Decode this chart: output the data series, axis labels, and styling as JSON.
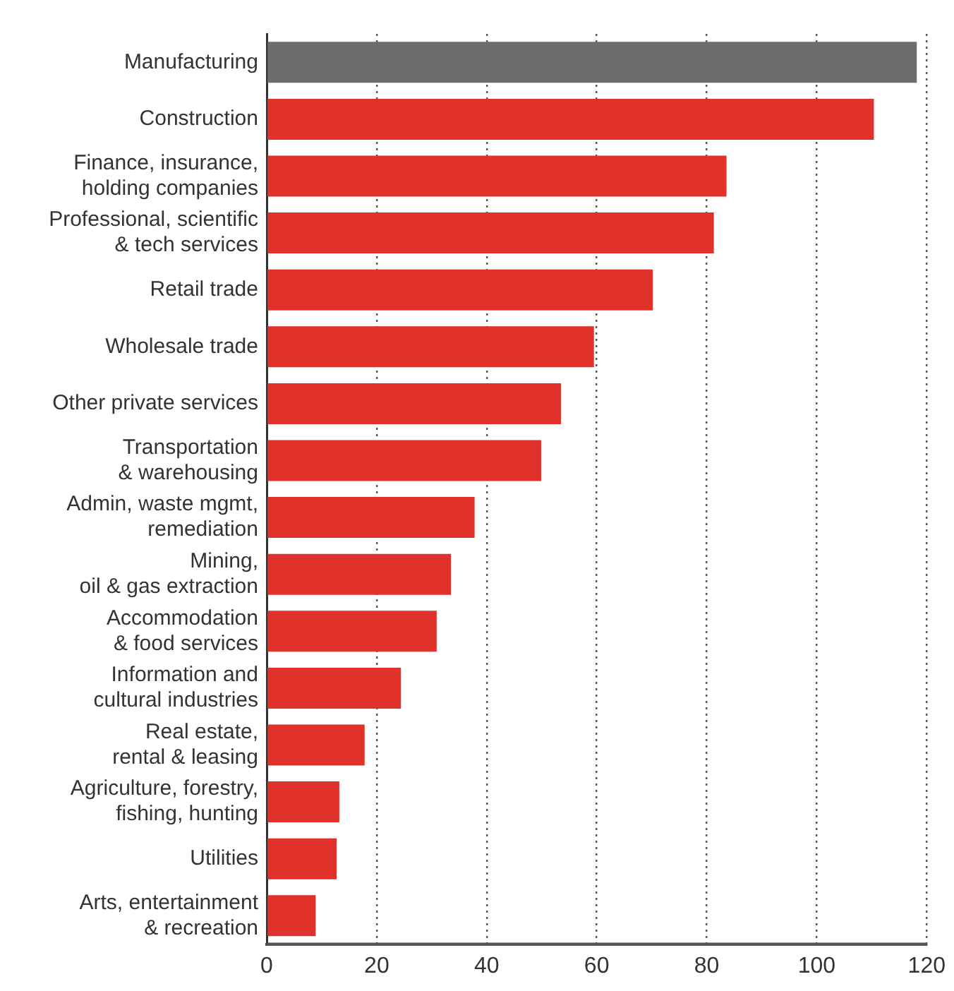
{
  "chart_data": {
    "type": "bar",
    "orientation": "horizontal",
    "categories": [
      "Manufacturing",
      "Construction",
      "Finance, insurance,\nholding companies",
      "Professional, scientific\n& tech services",
      "Retail trade",
      "Wholesale trade",
      "Other private services",
      "Transportation\n& warehousing",
      "Admin, waste mgmt,\nremediation",
      "Mining,\noil & gas extraction",
      "Accommodation\n& food services",
      "Information and\ncultural industries",
      "Real estate,\nrental & leasing",
      "Agriculture, forestry,\nfishing, hunting",
      "Utilities",
      "Arts, entertainment\n& recreation"
    ],
    "values": [
      118.2,
      110.4,
      83.6,
      81.3,
      70.2,
      59.5,
      53.5,
      49.9,
      37.8,
      33.5,
      30.9,
      24.4,
      17.8,
      13.2,
      12.7,
      8.9
    ],
    "colors": [
      "#6d6d6f",
      "#e0322a",
      "#e0322a",
      "#e0322a",
      "#e0322a",
      "#e0322a",
      "#e0322a",
      "#e0322a",
      "#e0322a",
      "#e0322a",
      "#e0322a",
      "#e0322a",
      "#e0322a",
      "#e0322a",
      "#e0322a",
      "#e0322a"
    ],
    "xlim": [
      0,
      120
    ],
    "xticks": [
      0,
      20,
      40,
      60,
      80,
      100,
      120
    ],
    "grid": "x"
  }
}
